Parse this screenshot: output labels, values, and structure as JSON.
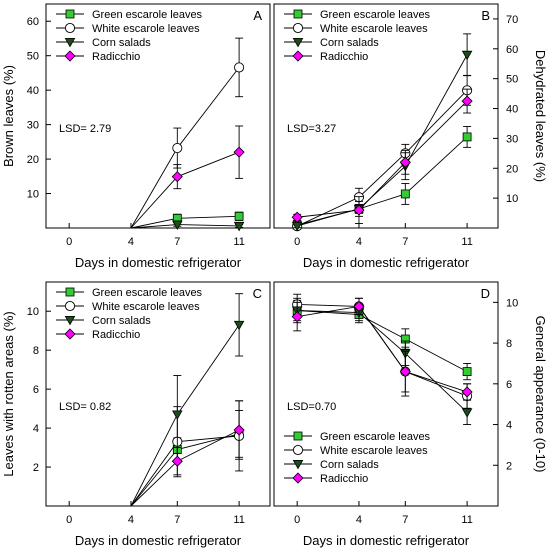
{
  "xlabel": "Days in domestic refrigerator",
  "legend_entries": [
    "Green escarole leaves",
    "White escarole leaves",
    "Corn salads",
    "Radicchio"
  ],
  "colors": {
    "green": "#33cc33",
    "white": "#ffffff",
    "corn": "#1a4d1a",
    "radicchio": "#ff00ff",
    "stroke": "#000000"
  },
  "chart_data": [
    {
      "id": "A",
      "type": "line",
      "panel_letter": "A",
      "ylabel": "Brown leaves (%)",
      "yaxis_side": "left",
      "ylim": [
        0,
        65
      ],
      "yticks": [
        10,
        20,
        30,
        40,
        50,
        60
      ],
      "x": [
        0,
        4,
        7,
        11
      ],
      "xticks": [
        0,
        4,
        7,
        11
      ],
      "show_xlabel": true,
      "lsd": "LSD= 2.79",
      "legend_position": "top-left",
      "series": [
        {
          "name": "Green escarole leaves",
          "marker": "square",
          "values": [
            null,
            0,
            2.8,
            3.4
          ],
          "err": [
            null,
            0,
            1.2,
            1.2
          ]
        },
        {
          "name": "White escarole leaves",
          "marker": "circle",
          "values": [
            null,
            0,
            23.2,
            46.6
          ],
          "err": [
            null,
            0,
            5.8,
            8.5
          ]
        },
        {
          "name": "Corn salads",
          "marker": "triangle-down",
          "values": [
            null,
            0,
            1.0,
            0.6
          ],
          "err": [
            null,
            0,
            0.5,
            0.4
          ]
        },
        {
          "name": "Radicchio",
          "marker": "diamond",
          "values": [
            null,
            0,
            14.9,
            22.0
          ],
          "err": [
            null,
            0,
            3.5,
            7.6
          ]
        }
      ]
    },
    {
      "id": "B",
      "type": "line",
      "panel_letter": "B",
      "ylabel": "Dehydrated leaves (%)",
      "yaxis_side": "right",
      "ylim": [
        0,
        75
      ],
      "yticks": [
        10,
        20,
        30,
        40,
        50,
        60,
        70
      ],
      "x": [
        0,
        4,
        7,
        11
      ],
      "xticks": [
        0,
        4,
        7,
        11
      ],
      "show_xlabel": true,
      "lsd": "LSD=3.27",
      "legend_position": "top-left",
      "series": [
        {
          "name": "Green escarole leaves",
          "marker": "square",
          "values": [
            1.0,
            6.4,
            11.4,
            30.5
          ],
          "err": [
            0.8,
            1.5,
            3.5,
            3.5
          ]
        },
        {
          "name": "White escarole leaves",
          "marker": "circle",
          "values": [
            0.6,
            10.3,
            25.0,
            46.1
          ],
          "err": [
            0.6,
            3.0,
            3.0,
            5.0
          ]
        },
        {
          "name": "Corn salads",
          "marker": "triangle-down",
          "values": [
            0.7,
            6.4,
            20.7,
            58.0
          ],
          "err": [
            0.6,
            2.5,
            4.5,
            7.0
          ]
        },
        {
          "name": "Radicchio",
          "marker": "diamond",
          "values": [
            3.6,
            6.0,
            22.0,
            42.5
          ],
          "err": [
            1.0,
            4.5,
            4.0,
            4.0
          ]
        }
      ]
    },
    {
      "id": "C",
      "type": "line",
      "panel_letter": "C",
      "ylabel": "Leaves with rotten areas (%)",
      "yaxis_side": "left",
      "ylim": [
        0,
        11.5
      ],
      "yticks": [
        2,
        4,
        6,
        8,
        10
      ],
      "x": [
        0,
        4,
        7,
        11
      ],
      "xticks": [
        0,
        4,
        7,
        11
      ],
      "show_xlabel": true,
      "lsd": "LSD= 0.82",
      "legend_position": "top-left",
      "series": [
        {
          "name": "Green escarole leaves",
          "marker": "square",
          "values": [
            null,
            0,
            2.9,
            3.7
          ],
          "err": [
            null,
            0,
            0.6,
            1.2
          ]
        },
        {
          "name": "White escarole leaves",
          "marker": "circle",
          "values": [
            null,
            0,
            3.3,
            3.6
          ],
          "err": [
            null,
            0,
            1.8,
            1.8
          ]
        },
        {
          "name": "Corn salads",
          "marker": "triangle-down",
          "values": [
            null,
            0,
            4.7,
            9.3
          ],
          "err": [
            null,
            0,
            2.0,
            1.6
          ]
        },
        {
          "name": "Radicchio",
          "marker": "diamond",
          "values": [
            null,
            0,
            2.3,
            3.9
          ],
          "err": [
            null,
            0,
            0.7,
            1.5
          ]
        }
      ]
    },
    {
      "id": "D",
      "type": "line",
      "panel_letter": "D",
      "ylabel": "General appearance (0-10)",
      "yaxis_side": "right",
      "ylim": [
        0,
        11
      ],
      "yticks": [
        2,
        4,
        6,
        8,
        10
      ],
      "x": [
        0,
        4,
        7,
        11
      ],
      "xticks": [
        0,
        4,
        7,
        11
      ],
      "show_xlabel": true,
      "lsd": "LSD=0.70",
      "legend_position": "bottom-left",
      "series": [
        {
          "name": "Green escarole leaves",
          "marker": "square",
          "values": [
            9.6,
            9.4,
            8.2,
            6.6
          ],
          "err": [
            0.5,
            0.4,
            0.5,
            0.4
          ]
        },
        {
          "name": "White escarole leaves",
          "marker": "circle",
          "values": [
            9.9,
            9.8,
            6.6,
            5.4
          ],
          "err": [
            0.5,
            0.4,
            1.2,
            0.6
          ]
        },
        {
          "name": "Corn salads",
          "marker": "triangle-down",
          "values": [
            9.6,
            9.5,
            7.5,
            4.6
          ],
          "err": [
            0.6,
            0.4,
            0.6,
            0.6
          ]
        },
        {
          "name": "Radicchio",
          "marker": "diamond",
          "values": [
            9.3,
            9.8,
            6.6,
            5.6
          ],
          "err": [
            0.7,
            0.4,
            1.0,
            0.4
          ]
        }
      ]
    }
  ]
}
